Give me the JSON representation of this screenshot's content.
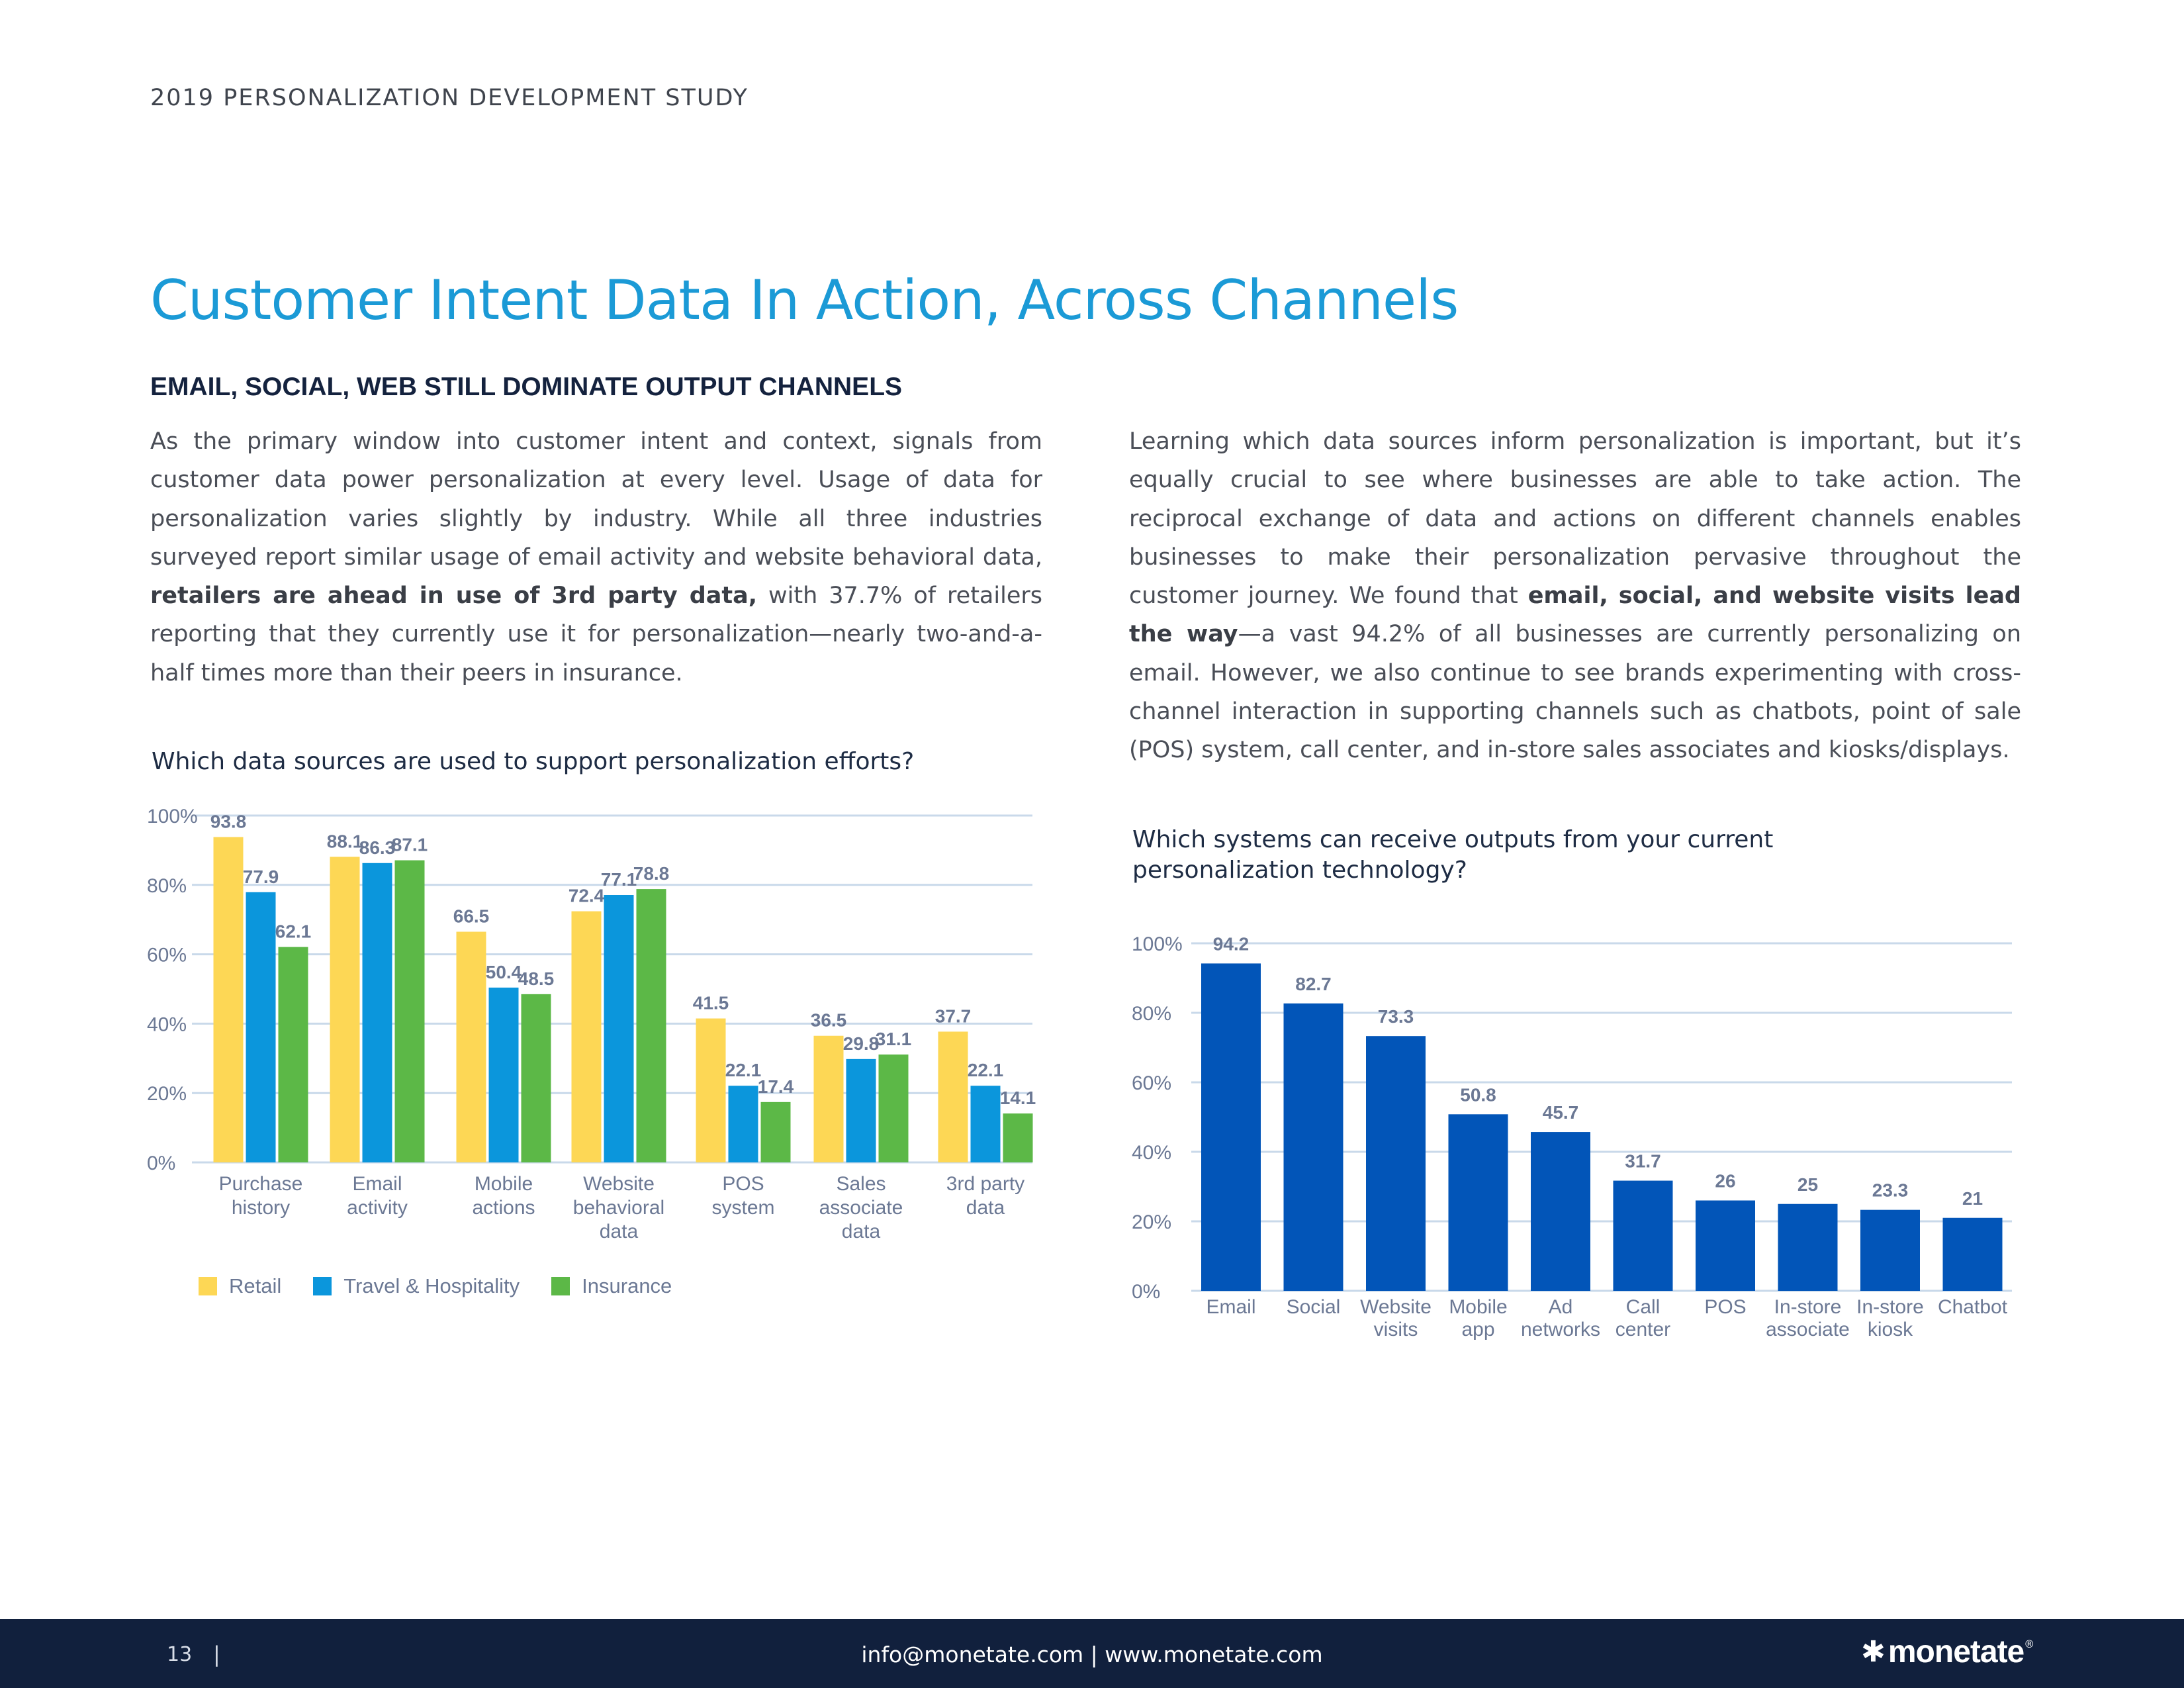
{
  "header": {
    "running_head": "2019 PERSONALIZATION DEVELOPMENT STUDY"
  },
  "title": "Customer Intent Data In Action, Across Channels",
  "subhead": "EMAIL, SOCIAL, WEB STILL DOMINATE OUTPUT CHANNELS",
  "left_col": {
    "p1": "As the primary window into customer intent and context, signals from customer data power personalization at every level. Usage of data for personalization varies slightly by industry. While all three industries surveyed report similar usage of email activity and website behavioral data, ",
    "p1_bold": "retailers are ahead in use of 3rd party data,",
    "p1_end": " with 37.7% of retailers reporting that they currently use it for personalization—nearly two-and-a-half times more than their peers in insurance."
  },
  "right_col": {
    "p1": "Learning which data sources inform personalization is important, but it’s equally crucial to see where businesses are able to take action. The reciprocal exchange of data and actions on different channels enables businesses to make their personalization pervasive throughout the customer journey. We found that ",
    "p1_bold": "email, social, and website visits lead the way",
    "p1_end": "—a vast 94.2% of all businesses are currently personalizing on email. However, we also continue to see brands experimenting with cross-channel interaction in supporting channels such as chatbots, point of sale (POS) system, call center, and in-store sales associates and kiosks/displays."
  },
  "colors": {
    "retail": "#fdd755",
    "travel": "#0b96dc",
    "insurance": "#5cb847",
    "systems": "#0255b8",
    "grid": "#c9d9ea",
    "axis_text": "#6b7894",
    "value_text": "#6b7894"
  },
  "chart_data": [
    {
      "type": "bar",
      "title": "Which data sources are used to support personalization efforts?",
      "categories": [
        [
          "Purchase",
          "history"
        ],
        [
          "Email",
          "activity"
        ],
        [
          "Mobile",
          "actions"
        ],
        [
          "Website",
          "behavioral",
          "data"
        ],
        [
          "POS",
          "system"
        ],
        [
          "Sales",
          "associate",
          "data"
        ],
        [
          "3rd party",
          "data"
        ]
      ],
      "series": [
        {
          "name": "Retail",
          "color_key": "retail",
          "values": [
            93.8,
            88.1,
            66.5,
            72.4,
            41.5,
            36.5,
            37.7
          ]
        },
        {
          "name": "Travel & Hospitality",
          "color_key": "travel",
          "values": [
            77.9,
            86.3,
            50.4,
            77.1,
            22.1,
            29.8,
            22.1
          ]
        },
        {
          "name": "Insurance",
          "color_key": "insurance",
          "values": [
            62.1,
            87.1,
            48.5,
            78.8,
            17.4,
            31.1,
            14.1
          ]
        }
      ],
      "yticks": [
        "0%",
        "20%",
        "40%",
        "60%",
        "80%",
        "100%"
      ],
      "ylim": [
        0,
        100
      ],
      "grid": true,
      "legend": "bottom-left"
    },
    {
      "type": "bar",
      "title": "Which systems can receive outputs from your current personalization technology?",
      "categories": [
        [
          "Email"
        ],
        [
          "Social"
        ],
        [
          "Website",
          "visits"
        ],
        [
          "Mobile",
          "app"
        ],
        [
          "Ad",
          "networks"
        ],
        [
          "Call",
          "center"
        ],
        [
          "POS"
        ],
        [
          "In-store",
          "associate"
        ],
        [
          "In-store",
          "kiosk"
        ],
        [
          "Chatbot"
        ]
      ],
      "values": [
        94.2,
        82.7,
        73.3,
        50.8,
        45.7,
        31.7,
        26,
        25,
        23.3,
        21
      ],
      "yticks": [
        "0%",
        "20%",
        "40%",
        "60%",
        "80%",
        "100%"
      ],
      "ylim": [
        0,
        100
      ],
      "grid": true
    }
  ],
  "footer": {
    "page_number": "13",
    "separator": "|",
    "contact": "info@monetate.com | www.monetate.com",
    "brand_mark": "✱",
    "brand": "monetate",
    "brand_reg": "®"
  }
}
